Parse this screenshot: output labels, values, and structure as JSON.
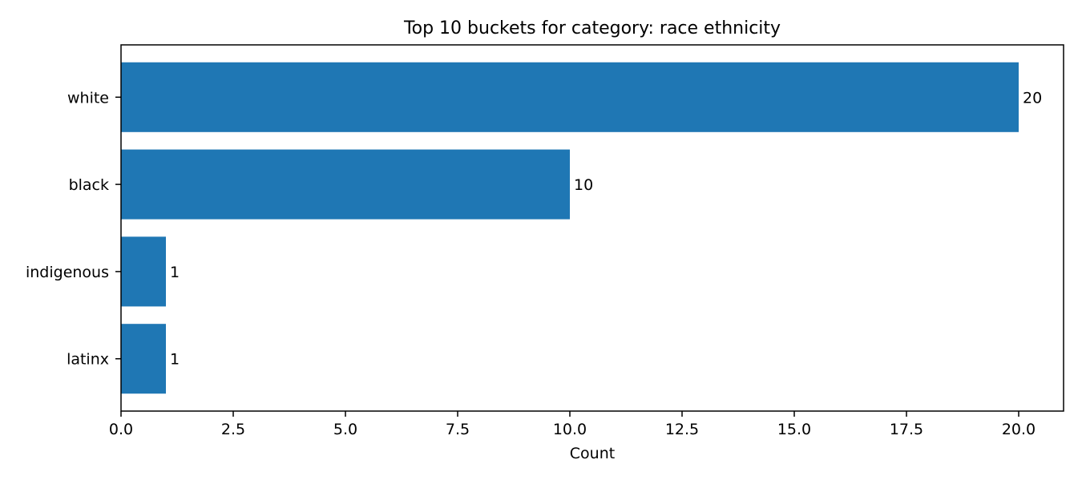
{
  "chart_data": {
    "type": "bar",
    "orientation": "horizontal",
    "title": "Top 10 buckets for category: race ethnicity",
    "xlabel": "Count",
    "ylabel": "",
    "categories": [
      "white",
      "black",
      "indigenous",
      "latinx"
    ],
    "values": [
      20,
      10,
      1,
      1
    ],
    "data_labels": [
      "20",
      "10",
      "1",
      "1"
    ],
    "xlim": [
      0,
      21
    ],
    "xticks": [
      0,
      2.5,
      5,
      7.5,
      10,
      12.5,
      15,
      17.5,
      20
    ],
    "xtick_labels": [
      "0.0",
      "2.5",
      "5.0",
      "7.5",
      "10.0",
      "12.5",
      "15.0",
      "17.5",
      "20.0"
    ],
    "bar_color": "#1f77b4",
    "grid": false,
    "legend": "none"
  }
}
